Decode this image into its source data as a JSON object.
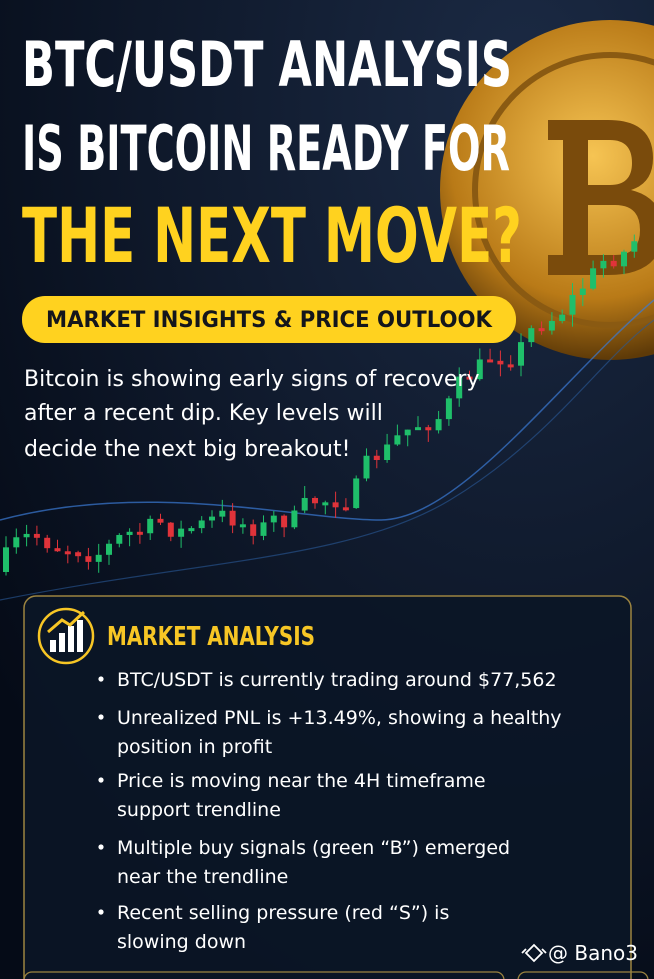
{
  "header": {
    "title_lines": [
      "BTC/USDT ANALYSIS",
      "IS BITCOIN READY FOR",
      "THE NEXT MOVE?"
    ],
    "badge": "MARKET INSIGHTS & PRICE OUTLOOK",
    "intro_lines": [
      "Bitcoin is showing early signs of recovery",
      "after a recent dip. Key levels will",
      "decide the next big breakout!"
    ]
  },
  "card": {
    "title": "MARKET ANALYSIS",
    "bullets": [
      [
        "BTC/USDT is currently trading around $77,562"
      ],
      [
        "Unrealized PNL is +13.49%, showing a healthy",
        "position in profit"
      ],
      [
        "Price is moving near the 4H timeframe",
        "support trendline"
      ],
      [
        "Multiple buy signals (green “B”) emerged",
        "near the trendline"
      ],
      [
        "Recent selling pressure (red “S”) is",
        "slowing down"
      ]
    ]
  },
  "watermark": "@ Bano3"
}
